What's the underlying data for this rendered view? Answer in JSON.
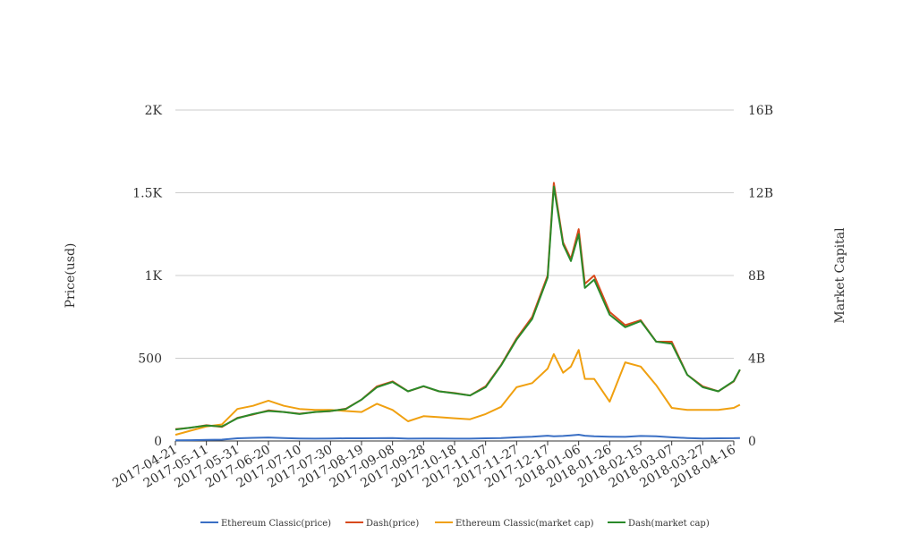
{
  "chart_data": {
    "type": "line",
    "title": "",
    "xlabel": "",
    "ylabel": "Price(usd)",
    "y2label": "Market Capital",
    "ylim": [
      0,
      2000
    ],
    "y2lim": [
      0,
      16000000000
    ],
    "yticks": [
      {
        "value": 0,
        "label": "0"
      },
      {
        "value": 500,
        "label": "500"
      },
      {
        "value": 1000,
        "label": "1K"
      },
      {
        "value": 1500,
        "label": "1.5K"
      },
      {
        "value": 2000,
        "label": "2K"
      }
    ],
    "y2ticks": [
      {
        "value": 0,
        "label": "0"
      },
      {
        "value": 4000000000,
        "label": "4B"
      },
      {
        "value": 8000000000,
        "label": "8B"
      },
      {
        "value": 12000000000,
        "label": "12B"
      },
      {
        "value": 16000000000,
        "label": "16B"
      }
    ],
    "xticks": [
      "2017-04-21",
      "2017-05-11",
      "2017-05-31",
      "2017-06-20",
      "2017-07-10",
      "2017-07-30",
      "2017-08-19",
      "2017-09-08",
      "2017-09-28",
      "2017-10-18",
      "2017-11-07",
      "2017-11-27",
      "2017-12-17",
      "2018-01-06",
      "2018-01-26",
      "2018-02-15",
      "2018-03-07",
      "2018-03-27",
      "2018-04-16"
    ],
    "x": [
      "2017-04-21",
      "2017-05-01",
      "2017-05-11",
      "2017-05-21",
      "2017-05-31",
      "2017-06-10",
      "2017-06-20",
      "2017-06-30",
      "2017-07-10",
      "2017-07-20",
      "2017-07-30",
      "2017-08-09",
      "2017-08-19",
      "2017-08-29",
      "2017-09-08",
      "2017-09-18",
      "2017-09-28",
      "2017-10-08",
      "2017-10-18",
      "2017-10-28",
      "2017-11-07",
      "2017-11-17",
      "2017-11-27",
      "2017-12-07",
      "2017-12-17",
      "2017-12-21",
      "2017-12-27",
      "2018-01-01",
      "2018-01-06",
      "2018-01-10",
      "2018-01-16",
      "2018-01-26",
      "2018-02-05",
      "2018-02-15",
      "2018-02-25",
      "2018-03-07",
      "2018-03-17",
      "2018-03-27",
      "2018-04-06",
      "2018-04-16",
      "2018-04-20"
    ],
    "legend_position": "bottom",
    "grid": true,
    "series": [
      {
        "name": "Ethereum Classic(price)",
        "axis": "left",
        "color": "#3a6fc4",
        "values": [
          4,
          5,
          7,
          8,
          16,
          19,
          21,
          18,
          15,
          14,
          15,
          16,
          16,
          17,
          18,
          14,
          15,
          15,
          14,
          14,
          16,
          18,
          22,
          26,
          32,
          28,
          30,
          34,
          38,
          32,
          28,
          26,
          25,
          30,
          28,
          22,
          18,
          15,
          16,
          17,
          18
        ]
      },
      {
        "name": "Dash(price)",
        "axis": "left",
        "color": "#d84a1c",
        "values": [
          72,
          80,
          95,
          85,
          140,
          160,
          185,
          175,
          165,
          175,
          180,
          195,
          250,
          330,
          360,
          300,
          330,
          300,
          290,
          275,
          330,
          460,
          620,
          750,
          1000,
          1560,
          1200,
          1100,
          1280,
          950,
          1000,
          780,
          700,
          730,
          600,
          600,
          400,
          330,
          300,
          360,
          430
        ]
      },
      {
        "name": "Ethereum Classic(market cap)",
        "axis": "right",
        "color": "#f0a010",
        "values": [
          300000000,
          500000000,
          700000000,
          800000000,
          1550000000,
          1700000000,
          1950000000,
          1700000000,
          1550000000,
          1500000000,
          1500000000,
          1450000000,
          1400000000,
          1800000000,
          1500000000,
          950000000,
          1200000000,
          1150000000,
          1100000000,
          1050000000,
          1300000000,
          1650000000,
          2600000000,
          2800000000,
          3500000000,
          4200000000,
          3300000000,
          3600000000,
          4400000000,
          3000000000,
          3000000000,
          1900000000,
          3800000000,
          3600000000,
          2700000000,
          1600000000,
          1500000000,
          1500000000,
          1500000000,
          1600000000,
          1750000000
        ]
      },
      {
        "name": "Dash(market cap)",
        "axis": "right",
        "color": "#2a8a2a",
        "values": [
          550000000,
          650000000,
          750000000,
          700000000,
          1100000000,
          1300000000,
          1450000000,
          1400000000,
          1300000000,
          1400000000,
          1450000000,
          1550000000,
          2000000000,
          2600000000,
          2850000000,
          2400000000,
          2650000000,
          2400000000,
          2300000000,
          2200000000,
          2600000000,
          3650000000,
          4900000000,
          5900000000,
          7900000000,
          12300000000,
          9500000000,
          8700000000,
          10000000000,
          7400000000,
          7800000000,
          6100000000,
          5500000000,
          5800000000,
          4800000000,
          4700000000,
          3200000000,
          2600000000,
          2400000000,
          2900000000,
          3450000000
        ]
      }
    ]
  }
}
